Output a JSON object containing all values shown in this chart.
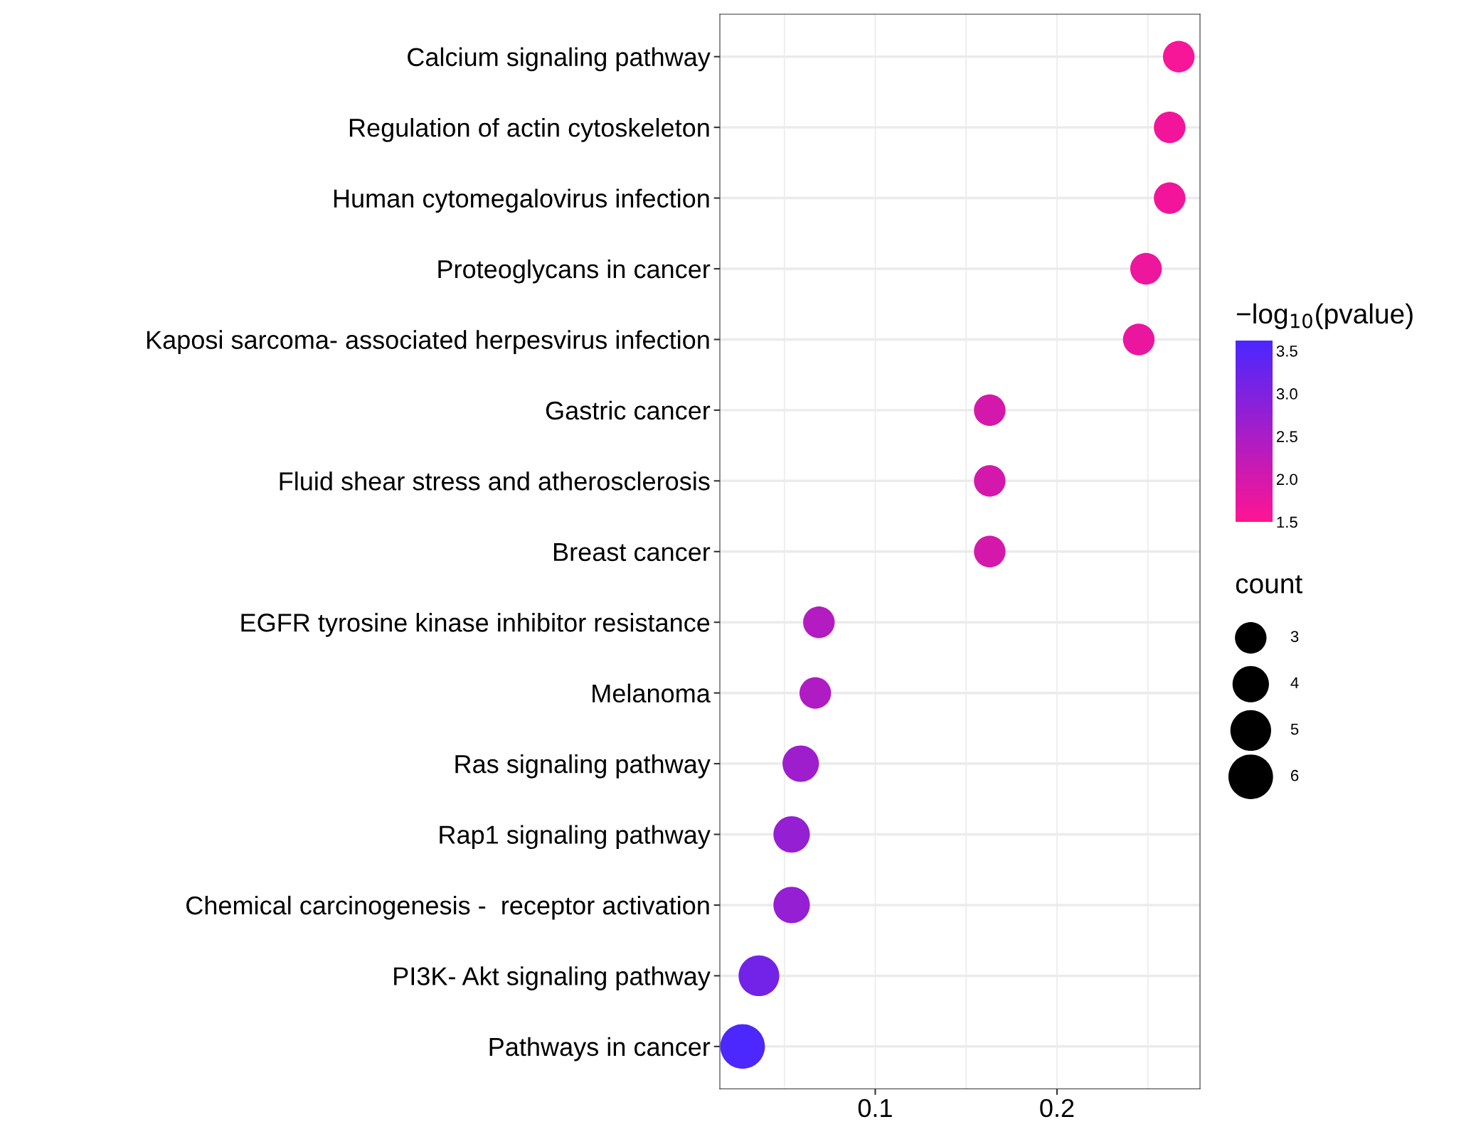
{
  "chart_data": {
    "type": "bubble",
    "orientation": "horizontal",
    "categories": [
      "Calcium signaling pathway",
      "Regulation of actin cytoskeleton",
      "Human cytomegalovirus infection",
      "Proteoglycans in cancer",
      "Kaposi sarcoma- associated herpesvirus infection",
      "Gastric cancer",
      "Fluid shear stress and atherosclerosis",
      "Breast cancer",
      "EGFR tyrosine kinase inhibitor resistance",
      "Melanoma",
      "Ras signaling pathway",
      "Rap1 signaling pathway",
      "Chemical carcinogenesis -  receptor activation",
      "PI3K- Akt signaling pathway",
      "Pathways in cancer"
    ],
    "values": [
      0.267,
      0.262,
      0.262,
      0.249,
      0.245,
      0.163,
      0.163,
      0.163,
      0.069,
      0.067,
      0.059,
      0.054,
      0.054,
      0.036,
      0.027
    ],
    "sizes": [
      3,
      3,
      3,
      3,
      3,
      3,
      3,
      3,
      3,
      3,
      4,
      4,
      4,
      5,
      6
    ],
    "cvalues": [
      1.6,
      1.65,
      1.65,
      1.7,
      1.75,
      2.0,
      2.0,
      2.0,
      2.4,
      2.45,
      2.65,
      2.75,
      2.75,
      3.15,
      3.6
    ],
    "xlim": [
      0.0145,
      0.2787
    ],
    "xticks": [
      0.1,
      0.2
    ],
    "clabel": "−log$_{10}$(pvalue)",
    "clim": [
      1.5,
      3.62
    ],
    "cticks": [
      1.5,
      {
        "value": 2,
        "label": "2.0"
      },
      2.5,
      {
        "value": 3,
        "label": "3.0"
      },
      3.5
    ],
    "legend_title": "count",
    "size_legend": [
      3,
      4,
      5,
      6
    ],
    "grid": true
  }
}
